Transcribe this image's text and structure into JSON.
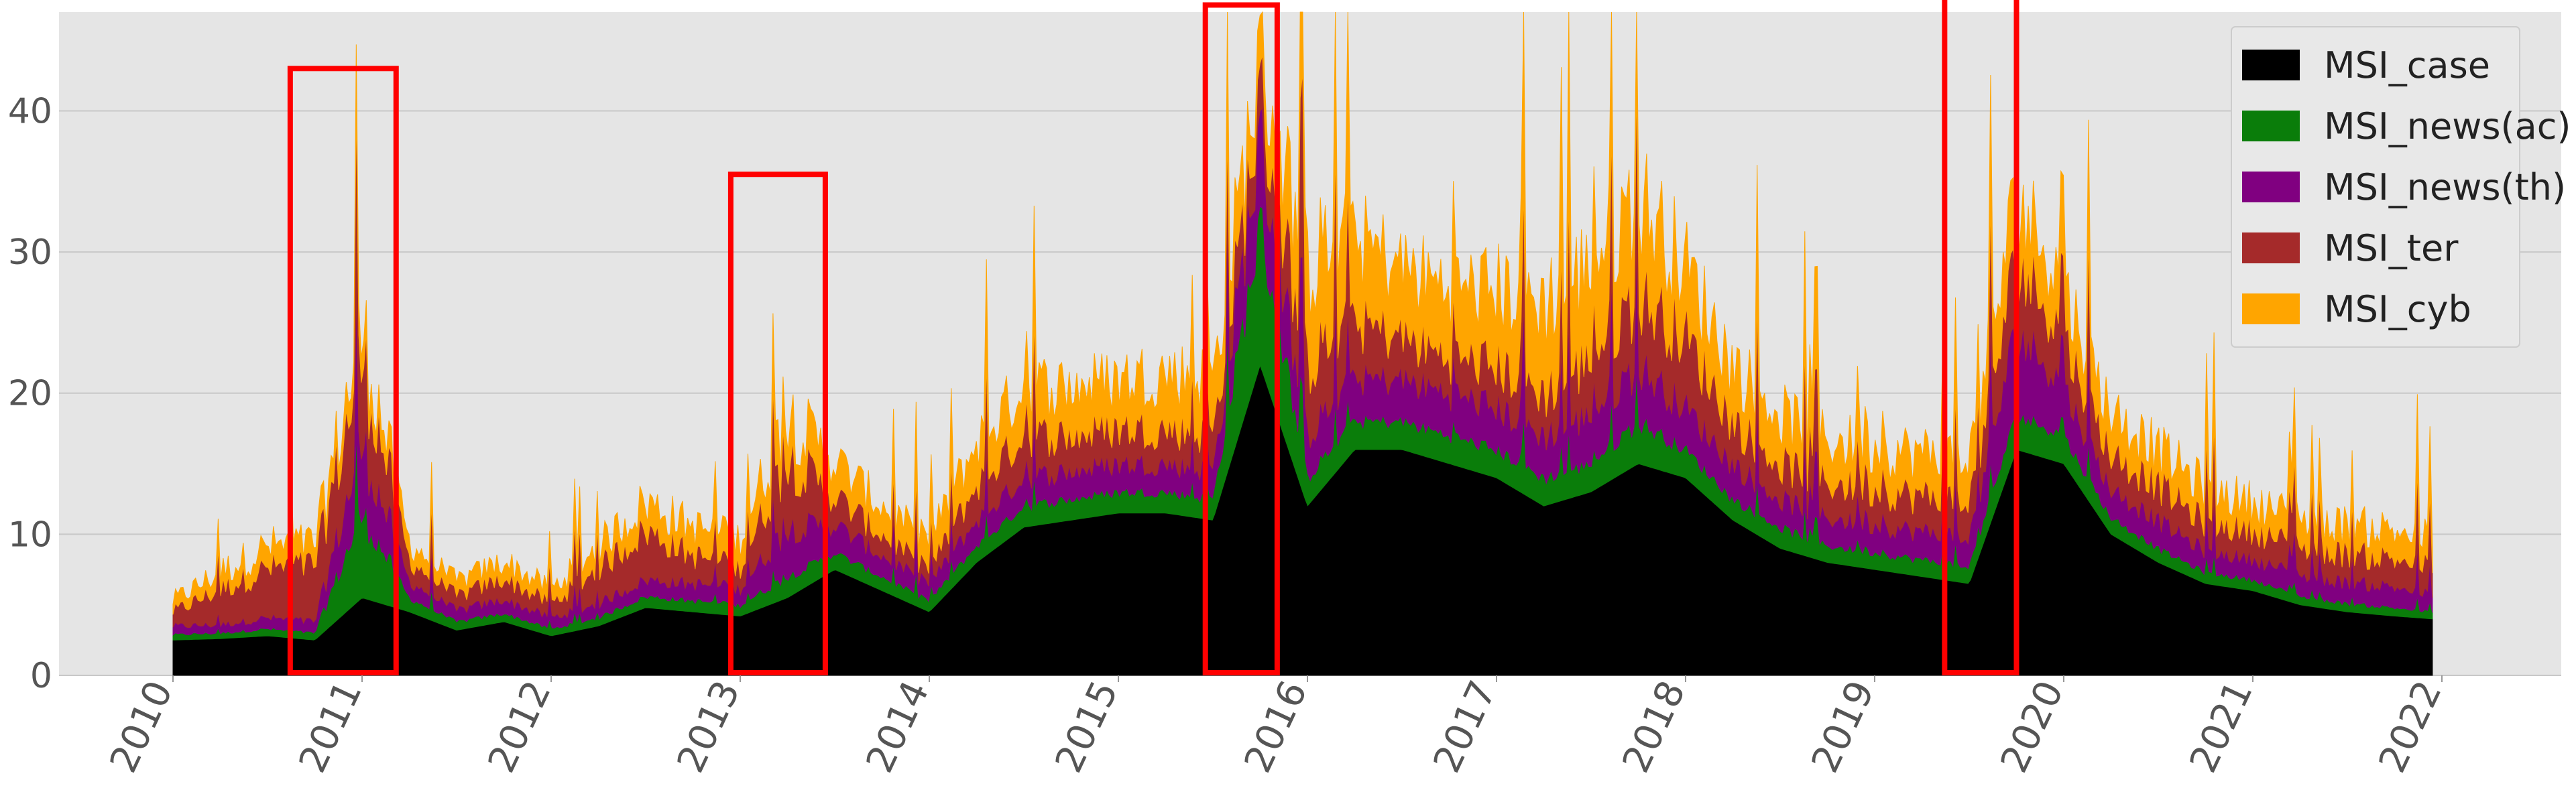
{
  "chart_data": {
    "type": "area",
    "stacked": true,
    "title": "",
    "xlabel": "",
    "ylabel": "",
    "xlim": [
      2010,
      2022
    ],
    "ylim": [
      0,
      47
    ],
    "grid": true,
    "background": "#e5e5e5",
    "legend_position": "top-right",
    "x_ticks": [
      "2010",
      "2011",
      "2012",
      "2013",
      "2014",
      "2015",
      "2016",
      "2017",
      "2018",
      "2019",
      "2020",
      "2021",
      "2022"
    ],
    "y_ticks": [
      "0",
      "10",
      "20",
      "30",
      "40"
    ],
    "x": [
      2010.0,
      2010.25,
      2010.5,
      2010.75,
      2011.0,
      2011.25,
      2011.5,
      2011.75,
      2012.0,
      2012.25,
      2012.5,
      2012.75,
      2013.0,
      2013.25,
      2013.5,
      2013.75,
      2014.0,
      2014.25,
      2014.5,
      2014.75,
      2015.0,
      2015.25,
      2015.5,
      2015.75,
      2016.0,
      2016.25,
      2016.5,
      2016.75,
      2017.0,
      2017.25,
      2017.5,
      2017.75,
      2018.0,
      2018.25,
      2018.5,
      2018.75,
      2019.0,
      2019.25,
      2019.5,
      2019.75,
      2020.0,
      2020.25,
      2020.5,
      2020.75,
      2021.0,
      2021.25,
      2021.5,
      2021.75,
      2021.95
    ],
    "series": [
      {
        "name": "MSI_case",
        "color": "#000000",
        "values": [
          2.5,
          2.6,
          2.8,
          2.5,
          5.5,
          4.5,
          3.2,
          3.8,
          2.8,
          3.5,
          4.8,
          4.5,
          4.2,
          5.5,
          7.5,
          6.0,
          4.5,
          8.0,
          10.5,
          11.0,
          11.5,
          11.5,
          11.0,
          22.0,
          12.0,
          16.0,
          16.0,
          15.0,
          14.0,
          12.0,
          13.0,
          15.0,
          14.0,
          11.0,
          9.0,
          8.0,
          7.5,
          7.0,
          6.5,
          16.0,
          15.0,
          10.0,
          8.0,
          6.5,
          6.0,
          5.0,
          4.5,
          4.2,
          4.0
        ]
      },
      {
        "name": "MSI_news(ac)",
        "color": "#0a7d0a",
        "values": [
          0.4,
          0.4,
          0.5,
          0.5,
          6.0,
          1.0,
          0.6,
          0.6,
          0.5,
          0.6,
          0.8,
          0.8,
          0.8,
          1.5,
          1.2,
          1.0,
          0.8,
          1.2,
          1.5,
          1.5,
          1.5,
          1.5,
          1.5,
          10.0,
          2.0,
          2.0,
          2.0,
          2.0,
          2.0,
          2.0,
          2.0,
          3.0,
          2.0,
          1.5,
          1.5,
          1.2,
          1.2,
          1.2,
          1.2,
          2.5,
          2.0,
          1.2,
          1.0,
          0.8,
          0.8,
          0.6,
          0.6,
          0.6,
          0.5
        ]
      },
      {
        "name": "MSI_news(th)",
        "color": "#800080",
        "values": [
          0.6,
          0.6,
          0.8,
          0.8,
          5.0,
          1.2,
          0.8,
          1.0,
          0.8,
          1.0,
          1.2,
          1.2,
          1.2,
          3.5,
          2.0,
          1.5,
          1.2,
          1.8,
          2.0,
          2.0,
          2.0,
          2.0,
          2.0,
          6.0,
          3.0,
          3.0,
          3.0,
          3.0,
          3.0,
          3.0,
          3.5,
          4.0,
          3.0,
          2.5,
          2.0,
          2.0,
          2.0,
          2.0,
          2.0,
          6.0,
          3.5,
          2.0,
          2.0,
          1.5,
          1.5,
          1.5,
          1.5,
          1.5,
          1.2
        ]
      },
      {
        "name": "MSI_ter",
        "color": "#a52a2a",
        "values": [
          1.0,
          2.5,
          3.5,
          4.0,
          6.0,
          1.5,
          1.0,
          1.5,
          1.0,
          2.5,
          3.5,
          2.0,
          1.5,
          5.0,
          2.0,
          1.5,
          1.0,
          2.5,
          3.0,
          2.5,
          2.5,
          2.5,
          2.5,
          3.0,
          5.0,
          4.0,
          3.0,
          2.5,
          3.0,
          3.0,
          4.0,
          5.0,
          5.0,
          3.0,
          2.5,
          2.5,
          2.5,
          2.5,
          2.5,
          5.0,
          3.5,
          2.5,
          2.5,
          2.0,
          2.0,
          2.0,
          2.0,
          2.0,
          2.0
        ]
      },
      {
        "name": "MSI_cyb",
        "color": "#ffa500",
        "values": [
          0.8,
          1.2,
          1.5,
          1.5,
          2.0,
          1.2,
          1.0,
          1.2,
          1.0,
          1.5,
          2.0,
          2.0,
          2.0,
          3.0,
          2.5,
          2.0,
          2.0,
          3.0,
          3.5,
          3.5,
          3.5,
          4.0,
          4.0,
          3.0,
          7.0,
          6.0,
          5.0,
          5.0,
          5.5,
          6.5,
          6.5,
          7.0,
          5.0,
          4.0,
          3.5,
          3.0,
          3.0,
          3.0,
          3.0,
          4.5,
          3.5,
          3.0,
          2.5,
          2.5,
          2.0,
          2.0,
          2.0,
          2.0,
          2.0
        ]
      }
    ],
    "highlight_boxes": [
      {
        "x_start": 2010.62,
        "x_end": 2011.18,
        "y_top": 43.0
      },
      {
        "x_start": 2012.95,
        "x_end": 2013.45,
        "y_top": 35.5
      },
      {
        "x_start": 2015.46,
        "x_end": 2015.84,
        "y_top": 47.5
      },
      {
        "x_start": 2019.37,
        "x_end": 2019.75,
        "y_top": 48.5
      }
    ]
  }
}
